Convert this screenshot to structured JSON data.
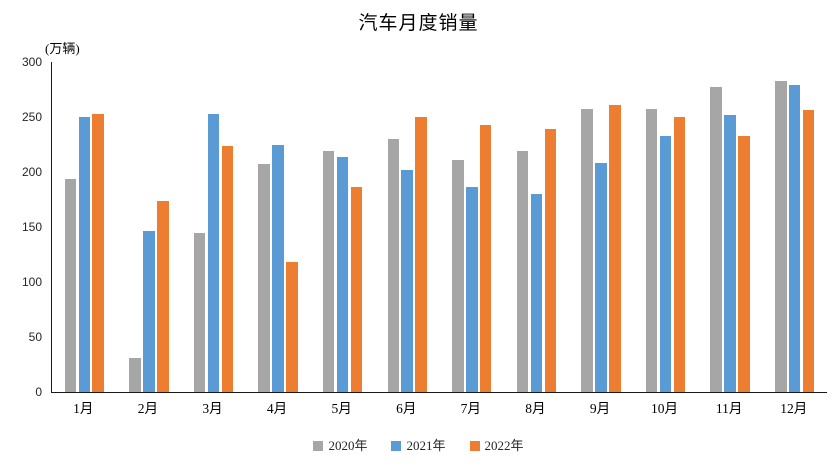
{
  "chart": {
    "background_color": "#ffffff",
    "axis_color": "#1a1a1a"
  },
  "chart_data": {
    "type": "bar",
    "title": "汽车月度销量",
    "unit_label": "(万辆)",
    "xlabel": "",
    "ylabel": "万辆",
    "categories": [
      "1月",
      "2月",
      "3月",
      "4月",
      "5月",
      "6月",
      "7月",
      "8月",
      "9月",
      "10月",
      "11月",
      "12月"
    ],
    "series": [
      {
        "name": "2020年",
        "color": "#A6A6A6",
        "values": [
          194,
          31,
          145,
          207,
          219,
          230,
          211,
          219,
          257,
          257,
          277,
          283
        ]
      },
      {
        "name": "2021年",
        "color": "#5B9BD5",
        "values": [
          250,
          146,
          253,
          225,
          214,
          202,
          186,
          180,
          208,
          233,
          252,
          279
        ]
      },
      {
        "name": "2022年",
        "color": "#ED7D31",
        "values": [
          253,
          174,
          224,
          118,
          186,
          250,
          243,
          239,
          261,
          250,
          233,
          256
        ]
      }
    ],
    "ylim": [
      0,
      300
    ],
    "yticks": [
      0,
      50,
      100,
      150,
      200,
      250,
      300
    ],
    "grid": false,
    "legend_position": "bottom"
  }
}
